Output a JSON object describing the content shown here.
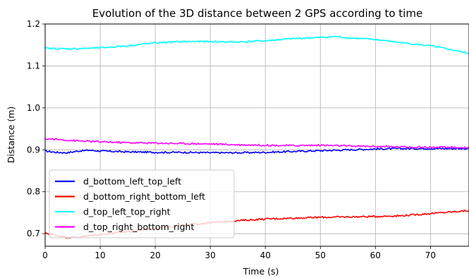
{
  "chart_data": {
    "type": "line",
    "title": "Evolution of the 3D distance between 2 GPS according to time",
    "xlabel": "Time (s)",
    "ylabel": "Distance (m)",
    "xlim": [
      0,
      77
    ],
    "ylim": [
      0.67,
      1.2
    ],
    "xticks": [
      0,
      10,
      20,
      30,
      40,
      50,
      60,
      70
    ],
    "yticks": [
      0.7,
      0.8,
      0.9,
      1.0,
      1.1,
      1.2
    ],
    "ytick_labels": [
      "0.7",
      "0.8",
      "0.9",
      "1.0",
      "1.1",
      "1.2"
    ],
    "grid": true,
    "legend_position": "lower-left",
    "series": [
      {
        "name": "d_bottom_left_top_left",
        "color": "#0000ff",
        "x": [
          0,
          2,
          4,
          6,
          8,
          10,
          15,
          20,
          25,
          30,
          35,
          40,
          45,
          50,
          55,
          60,
          65,
          70,
          77
        ],
        "y": [
          0.897,
          0.894,
          0.893,
          0.897,
          0.899,
          0.897,
          0.895,
          0.894,
          0.894,
          0.893,
          0.893,
          0.894,
          0.896,
          0.898,
          0.9,
          0.902,
          0.903,
          0.903,
          0.903
        ]
      },
      {
        "name": "d_bottom_right_bottom_left",
        "color": "#ff0000",
        "x": [
          0,
          2,
          4,
          6,
          8,
          10,
          15,
          20,
          25,
          30,
          35,
          40,
          45,
          50,
          55,
          60,
          65,
          70,
          77
        ],
        "y": [
          0.702,
          0.696,
          0.691,
          0.692,
          0.695,
          0.698,
          0.705,
          0.713,
          0.72,
          0.726,
          0.731,
          0.735,
          0.737,
          0.739,
          0.74,
          0.741,
          0.743,
          0.748,
          0.755
        ]
      },
      {
        "name": "d_top_left_top_right",
        "color": "#00ffff",
        "x": [
          0,
          3,
          6,
          10,
          15,
          20,
          25,
          30,
          35,
          40,
          45,
          50,
          53,
          55,
          60,
          65,
          70,
          74,
          77
        ],
        "y": [
          1.142,
          1.141,
          1.141,
          1.143,
          1.148,
          1.155,
          1.158,
          1.158,
          1.157,
          1.16,
          1.165,
          1.168,
          1.17,
          1.167,
          1.163,
          1.155,
          1.148,
          1.138,
          1.13
        ]
      },
      {
        "name": "d_top_right_bottom_right",
        "color": "#ff00ff",
        "x": [
          0,
          2,
          5,
          10,
          15,
          20,
          25,
          30,
          35,
          40,
          45,
          50,
          55,
          60,
          65,
          70,
          77
        ],
        "y": [
          0.926,
          0.925,
          0.922,
          0.919,
          0.917,
          0.916,
          0.915,
          0.914,
          0.912,
          0.911,
          0.91,
          0.911,
          0.909,
          0.908,
          0.907,
          0.906,
          0.905
        ]
      }
    ]
  }
}
